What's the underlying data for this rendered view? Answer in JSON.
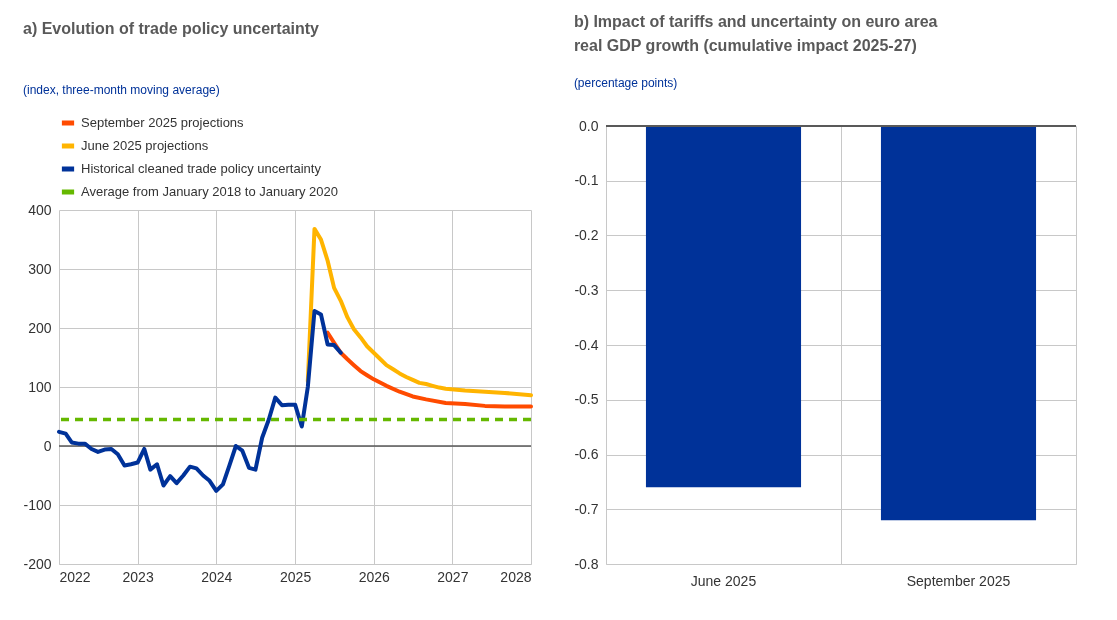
{
  "chart_data": [
    {
      "type": "line",
      "title": "a) Evolution of trade policy uncertainty",
      "subtitle": "(index, three-month moving average)",
      "legend": "top left",
      "grid": true,
      "xlim": [
        "2022-01",
        "2028-01"
      ],
      "xticks": [
        "2022",
        "2023",
        "2024",
        "2025",
        "2026",
        "2027",
        "2028"
      ],
      "ylim": [
        -200,
        400
      ],
      "yticks": [
        -200,
        -100,
        0,
        100,
        200,
        300,
        400
      ],
      "ref_lines": [
        {
          "axis": "y",
          "value": 0,
          "color": "#595959"
        },
        {
          "axis": "y",
          "value": 45,
          "label": "Average from January 2018 to January 2020",
          "color": "#65b800",
          "line_style": "dashed"
        }
      ],
      "series": [
        {
          "name": "September 2025 projections",
          "color": "#ff4b00",
          "x": [
            "2025-06",
            "2025-07",
            "2025-08",
            "2025-09",
            "2025-10",
            "2025-11",
            "2025-12",
            "2026-01",
            "2026-03",
            "2026-05",
            "2026-07",
            "2026-09",
            "2026-12",
            "2027-03",
            "2027-06",
            "2027-09",
            "2028-01"
          ],
          "values": [
            192,
            175,
            158,
            147,
            137,
            127,
            120,
            113,
            102,
            92,
            84,
            79,
            73,
            71,
            68,
            67,
            67
          ]
        },
        {
          "name": "June 2025 projections",
          "color": "#ffb400",
          "x": [
            "2025-03",
            "2025-04",
            "2025-05",
            "2025-06",
            "2025-07",
            "2025-08",
            "2025-09",
            "2025-10",
            "2025-11",
            "2025-12",
            "2026-01",
            "2026-02",
            "2026-03",
            "2026-04",
            "2026-05",
            "2026-06",
            "2026-07",
            "2026-08",
            "2026-09",
            "2026-10",
            "2026-11",
            "2026-12",
            "2027-03",
            "2027-06",
            "2027-09",
            "2028-01"
          ],
          "values": [
            110,
            368,
            350,
            314,
            268,
            246,
            218,
            198,
            184,
            169,
            158,
            147,
            137,
            130,
            123,
            117,
            112,
            107,
            105,
            102,
            99,
            97,
            94,
            92,
            90,
            86
          ]
        },
        {
          "name": "Historical cleaned trade policy uncertainty",
          "color": "#003299",
          "x": [
            "2022-01",
            "2022-02",
            "2022-03",
            "2022-04",
            "2022-05",
            "2022-06",
            "2022-07",
            "2022-08",
            "2022-09",
            "2022-10",
            "2022-11",
            "2022-12",
            "2023-01",
            "2023-02",
            "2023-03",
            "2023-04",
            "2023-05",
            "2023-06",
            "2023-07",
            "2023-08",
            "2023-09",
            "2023-10",
            "2023-11",
            "2023-12",
            "2024-01",
            "2024-02",
            "2024-03",
            "2024-04",
            "2024-05",
            "2024-06",
            "2024-07",
            "2024-08",
            "2024-09",
            "2024-10",
            "2024-11",
            "2024-12",
            "2025-01",
            "2025-02",
            "2025-03",
            "2025-04",
            "2025-05",
            "2025-06",
            "2025-07",
            "2025-08"
          ],
          "values": [
            24,
            21,
            6,
            4,
            4,
            -5,
            -10,
            -6,
            -5,
            -14,
            -33,
            -31,
            -28,
            -5,
            -40,
            -31,
            -67,
            -51,
            -63,
            -50,
            -35,
            -38,
            -50,
            -59,
            -76,
            -65,
            -34,
            0,
            -8,
            -37,
            -40,
            14,
            45,
            82,
            69,
            70,
            70,
            33,
            100,
            229,
            223,
            172,
            171,
            158
          ]
        }
      ]
    },
    {
      "type": "bar",
      "title": "b) Impact of tariffs and uncertainty on euro area real GDP growth (cumulative impact 2025-27)",
      "subtitle": "(percentage points)",
      "grid": true,
      "categories": [
        "June 2025",
        "September 2025"
      ],
      "values": [
        -0.66,
        -0.72
      ],
      "color": "#003299",
      "ylim": [
        -0.8,
        0
      ],
      "yticks": [
        -0.8,
        -0.7,
        -0.6,
        -0.5,
        -0.4,
        -0.3,
        -0.2,
        -0.1,
        {
          "value": 0,
          "label": "0.0"
        }
      ],
      "ref_lines": [
        {
          "axis": "y",
          "value": 0,
          "color": "#595959"
        }
      ]
    }
  ]
}
